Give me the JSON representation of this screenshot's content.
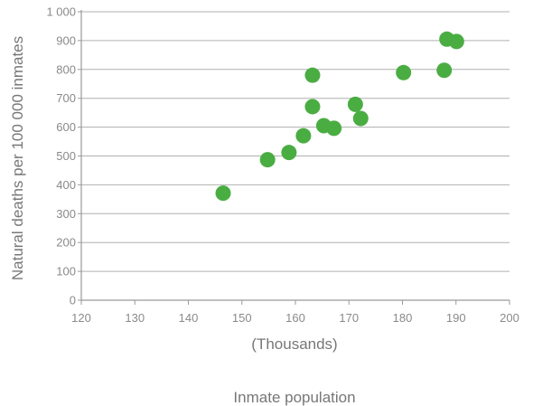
{
  "chart_data": {
    "type": "scatter",
    "title": "",
    "ylabel": "Natural deaths per 100 000 inmates",
    "xunit": "(Thousands)",
    "xlabel": "Inmate population",
    "xlim": [
      120,
      200
    ],
    "ylim": [
      0,
      1000
    ],
    "xticks": [
      120,
      130,
      140,
      150,
      160,
      170,
      180,
      190,
      200
    ],
    "xtick_labels": [
      "120",
      "130",
      "140",
      "150",
      "160",
      "170",
      "180",
      "190",
      "200"
    ],
    "yticks": [
      0,
      100,
      200,
      300,
      400,
      500,
      600,
      700,
      800,
      900,
      1000
    ],
    "ytick_labels": [
      "0",
      "100",
      "200",
      "300",
      "400",
      "500",
      "600",
      "700",
      "800",
      "900",
      "1 000"
    ],
    "grid": "horizontal",
    "marker_color": "#4aad42",
    "points": [
      {
        "x": 146.5,
        "y": 371
      },
      {
        "x": 154.8,
        "y": 487
      },
      {
        "x": 158.8,
        "y": 512
      },
      {
        "x": 161.5,
        "y": 570
      },
      {
        "x": 163.2,
        "y": 780
      },
      {
        "x": 163.2,
        "y": 671
      },
      {
        "x": 165.3,
        "y": 605
      },
      {
        "x": 167.2,
        "y": 596
      },
      {
        "x": 171.2,
        "y": 679
      },
      {
        "x": 172.2,
        "y": 630
      },
      {
        "x": 180.2,
        "y": 789
      },
      {
        "x": 187.8,
        "y": 797
      },
      {
        "x": 188.3,
        "y": 905
      },
      {
        "x": 190.1,
        "y": 897
      }
    ]
  }
}
